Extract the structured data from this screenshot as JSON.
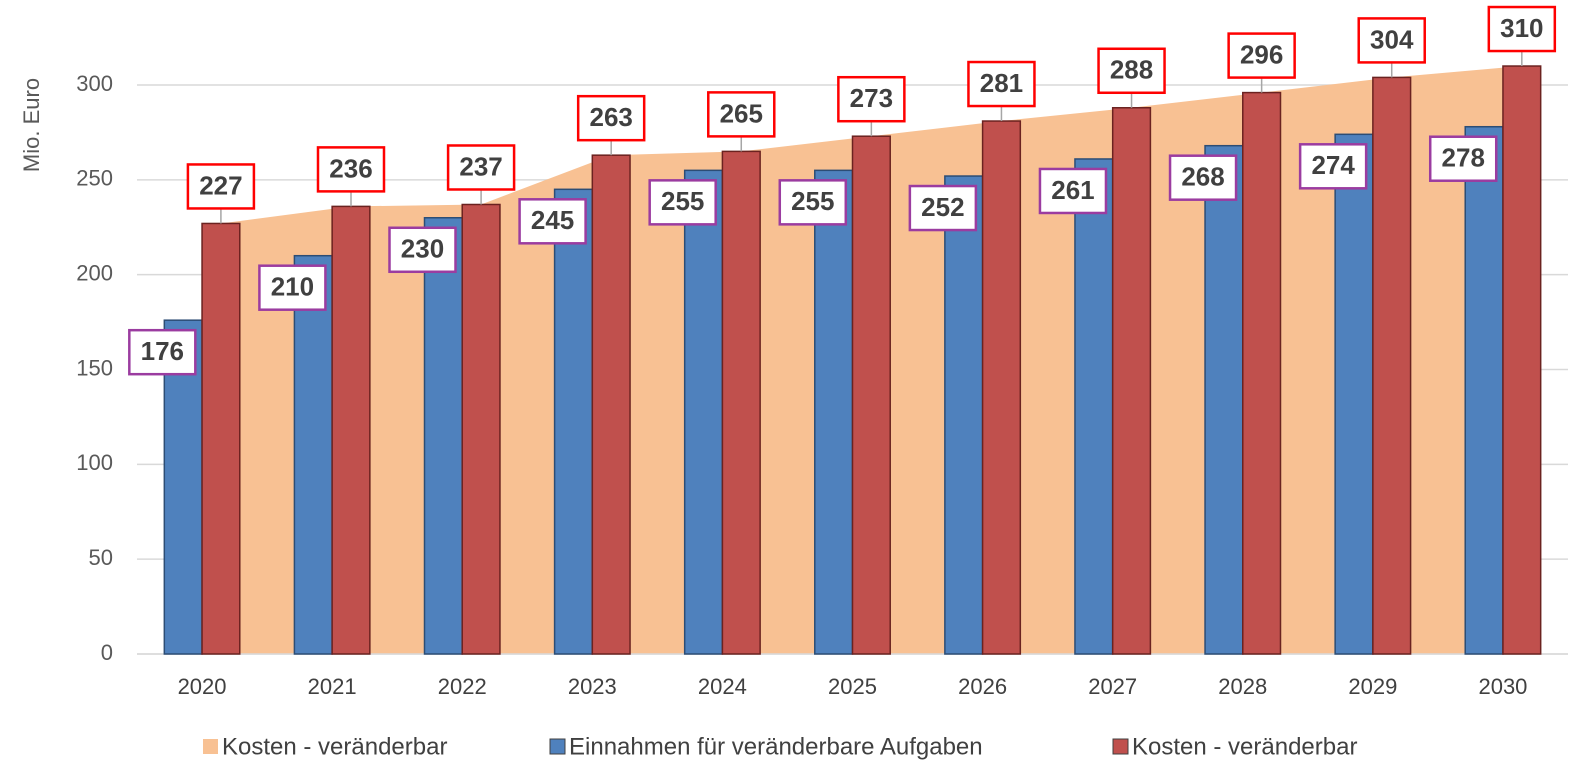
{
  "chart_data": {
    "type": "bar",
    "y_label": "Mio. Euro",
    "categories": [
      "2020",
      "2021",
      "2022",
      "2023",
      "2024",
      "2025",
      "2026",
      "2027",
      "2028",
      "2029",
      "2030"
    ],
    "series": [
      {
        "name": "Kosten - veränderbar",
        "type": "area",
        "color": "#f8c193",
        "values": [
          227,
          236,
          237,
          263,
          265,
          273,
          281,
          288,
          296,
          304,
          310
        ]
      },
      {
        "name": "Einnahmen für veränderbare Aufgaben",
        "color": "#4f81bd",
        "label_border": "#9b3ca0",
        "values": [
          176,
          210,
          230,
          245,
          255,
          255,
          252,
          261,
          268,
          274,
          278
        ]
      },
      {
        "name": "Kosten - veränderbar",
        "color": "#c0504d",
        "label_border": "#ff0000",
        "values": [
          227,
          236,
          237,
          263,
          265,
          273,
          281,
          288,
          296,
          304,
          310
        ]
      }
    ],
    "ylim": [
      0,
      300
    ],
    "yticks": [
      0,
      50,
      100,
      150,
      200,
      250,
      300
    ],
    "grid": true,
    "legend": "bottom"
  }
}
